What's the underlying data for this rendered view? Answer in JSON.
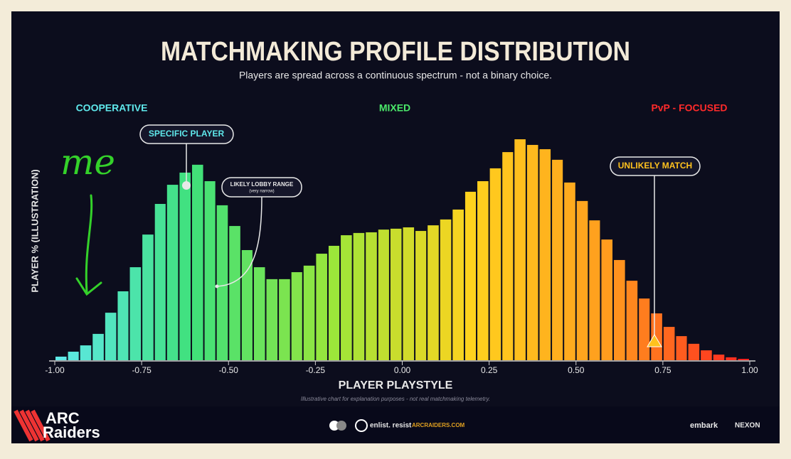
{
  "chart_data": {
    "type": "histogram",
    "title": "MATCHMAKING PROFILE DISTRIBUTION",
    "subtitle": "Players are spread across a continuous spectrum - not a binary choice.",
    "region_labels": [
      "COOPERATIVE",
      "MIXED",
      "PvP - FOCUSED"
    ],
    "x_label": "PLAYER PLAYSTYLE",
    "y_label": "PLAYER % (ILLUSTRATION)",
    "footnote": "Illustrative chart for explanation purposes - not real matchmaking telemetry.",
    "annotations": {
      "specific_player": "SPECIFIC PLAYER",
      "lobby_range": "LIKELY LOBBY RANGE",
      "lobby_range_note": "(very narrow)",
      "unlikely_match": "UNLIKELY MATCH"
    },
    "bins": [
      -1,
      -0.964,
      -0.929,
      -0.893,
      -0.857,
      -0.821,
      -0.786,
      -0.75,
      -0.714,
      -0.679,
      -0.643,
      -0.607,
      -0.571,
      -0.536,
      -0.5,
      -0.464,
      -0.429,
      -0.393,
      -0.357,
      -0.321,
      -0.286,
      -0.25,
      -0.214,
      -0.179,
      -0.143,
      -0.107,
      -0.071,
      -0.036,
      0,
      0.036,
      0.071,
      0.107,
      0.143,
      0.179,
      0.214,
      0.25,
      0.286,
      0.321,
      0.357,
      0.393,
      0.429,
      0.464,
      0.5,
      0.536,
      0.571,
      0.607,
      0.643,
      0.679,
      0.714,
      0.75,
      0.786,
      0.821,
      0.857,
      0.893,
      0.929,
      0.964,
      1
    ],
    "values": [
      1.6,
      3.8,
      6.6,
      11.7,
      21.1,
      30.6,
      41.3,
      55.8,
      69.4,
      77.9,
      83.3,
      86.8,
      79.5,
      68.8,
      59.6,
      48.9,
      41.3,
      36.0,
      36.0,
      39.1,
      42.0,
      47.3,
      50.8,
      55.5,
      56.5,
      56.8,
      58.0,
      58.4,
      59.0,
      57.4,
      59.9,
      62.5,
      66.9,
      74.8,
      79.5,
      85.2,
      92.4,
      98.1,
      95.6,
      93.7,
      89.0,
      78.9,
      70.7,
      62.1,
      53.6,
      44.5,
      35.3,
      27.4,
      20.8,
      14.8,
      10.7,
      7.3,
      4.4,
      2.5,
      1.3,
      0.6
    ],
    "color_stops": [
      "#5fe9ec",
      "#3fe07a",
      "#9be63a",
      "#ffd21e",
      "#ff9a1e",
      "#ff2020"
    ],
    "xlim": [
      -1,
      1
    ],
    "xticks": [
      {
        "value": -1,
        "label": "-1.00"
      },
      -0.75,
      {
        "value": -0.5,
        "label": "-0.50"
      },
      -0.25,
      {
        "value": 0,
        "label": "0.00"
      },
      0.25,
      {
        "value": 0.5,
        "label": "0.50"
      },
      0.75,
      {
        "value": 1,
        "label": "1.00"
      }
    ],
    "ylim": [
      0,
      100
    ]
  },
  "footer": {
    "logo_lines": [
      "ARC",
      "Raiders"
    ],
    "tagline": "enlist. resist",
    "site": "ARCRAIDERS.COM",
    "partners": [
      "embark",
      "NEXON"
    ]
  },
  "handwriting": "me"
}
